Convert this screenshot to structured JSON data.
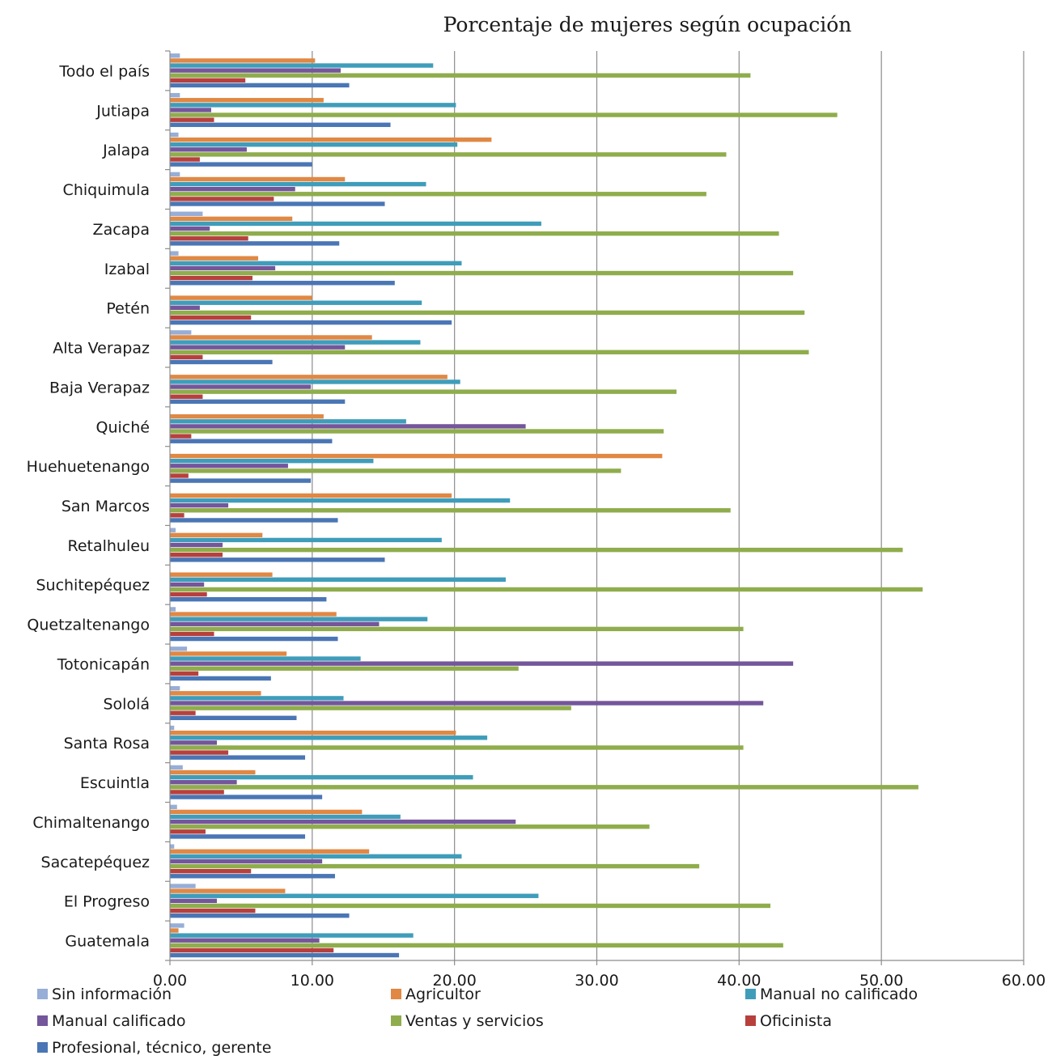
{
  "chart_data": {
    "type": "bar",
    "orientation": "horizontal",
    "title": "Porcentaje de mujeres según ocupación",
    "xlabel": "",
    "ylabel": "",
    "xlim": [
      0,
      60
    ],
    "x_ticks": [
      "0.00",
      "10.00",
      "20.00",
      "30.00",
      "40.00",
      "50.00",
      "60.00"
    ],
    "grid": "vertical",
    "legend_position": "bottom",
    "categories": [
      "Todo el país",
      "Jutiapa",
      "Jalapa",
      "Chiquimula",
      "Zacapa",
      "Izabal",
      "Petén",
      "Alta Verapaz",
      "Baja Verapaz",
      "Quiché",
      "Huehuetenango",
      "San Marcos",
      "Retalhuleu",
      "Suchitepéquez",
      "Quetzaltenango",
      "Totonicapán",
      "Sololá",
      "Santa Rosa",
      "Escuintla",
      "Chimaltenango",
      "Sacatepéquez",
      "El Progreso",
      "Guatemala"
    ],
    "series": [
      {
        "name": "Sin información",
        "color": "#97aed6",
        "values": [
          0.7,
          0.7,
          0.6,
          0.7,
          2.3,
          0.6,
          0.0,
          1.5,
          0.0,
          0.0,
          0.0,
          0.0,
          0.4,
          0.0,
          0.4,
          1.2,
          0.7,
          0.3,
          0.9,
          0.5,
          0.3,
          1.8,
          1.0
        ]
      },
      {
        "name": "Agricultor",
        "color": "#e08844",
        "values": [
          10.2,
          10.8,
          22.6,
          12.3,
          8.6,
          6.2,
          10.0,
          14.2,
          19.5,
          10.8,
          34.6,
          19.8,
          6.5,
          7.2,
          11.7,
          8.2,
          6.4,
          20.1,
          6.0,
          13.5,
          14.0,
          8.1,
          0.6
        ]
      },
      {
        "name": "Manual no calificado",
        "color": "#3f9dba",
        "values": [
          18.5,
          20.1,
          20.2,
          18.0,
          26.1,
          20.5,
          17.7,
          17.6,
          20.4,
          16.6,
          14.3,
          23.9,
          19.1,
          23.6,
          18.1,
          13.4,
          12.2,
          22.3,
          21.3,
          16.2,
          20.5,
          25.9,
          17.1
        ]
      },
      {
        "name": "Manual calificado",
        "color": "#74569b",
        "values": [
          12.0,
          2.9,
          5.4,
          8.8,
          2.8,
          7.4,
          2.1,
          12.3,
          9.9,
          25.0,
          8.3,
          4.1,
          3.7,
          2.4,
          14.7,
          43.8,
          41.7,
          3.3,
          4.7,
          24.3,
          10.7,
          3.3,
          10.5
        ]
      },
      {
        "name": "Ventas y servicios",
        "color": "#8fad4c",
        "values": [
          40.8,
          46.9,
          39.1,
          37.7,
          42.8,
          43.8,
          44.6,
          44.9,
          35.6,
          34.7,
          31.7,
          39.4,
          51.5,
          52.9,
          40.3,
          24.5,
          28.2,
          40.3,
          52.6,
          33.7,
          37.2,
          42.2,
          43.1
        ]
      },
      {
        "name": "Oficinista",
        "color": "#b7403d",
        "values": [
          5.3,
          3.1,
          2.1,
          7.3,
          5.5,
          5.8,
          5.7,
          2.3,
          2.3,
          1.5,
          1.3,
          1.0,
          3.7,
          2.6,
          3.1,
          2.0,
          1.8,
          4.1,
          3.8,
          2.5,
          5.7,
          6.0,
          11.5
        ]
      },
      {
        "name": "Profesional, técnico, gerente",
        "color": "#4a76b5",
        "values": [
          12.6,
          15.5,
          10.0,
          15.1,
          11.9,
          15.8,
          19.8,
          7.2,
          12.3,
          11.4,
          9.9,
          11.8,
          15.1,
          11.0,
          11.8,
          7.1,
          8.9,
          9.5,
          10.7,
          9.5,
          11.6,
          12.6,
          16.1
        ]
      }
    ]
  }
}
